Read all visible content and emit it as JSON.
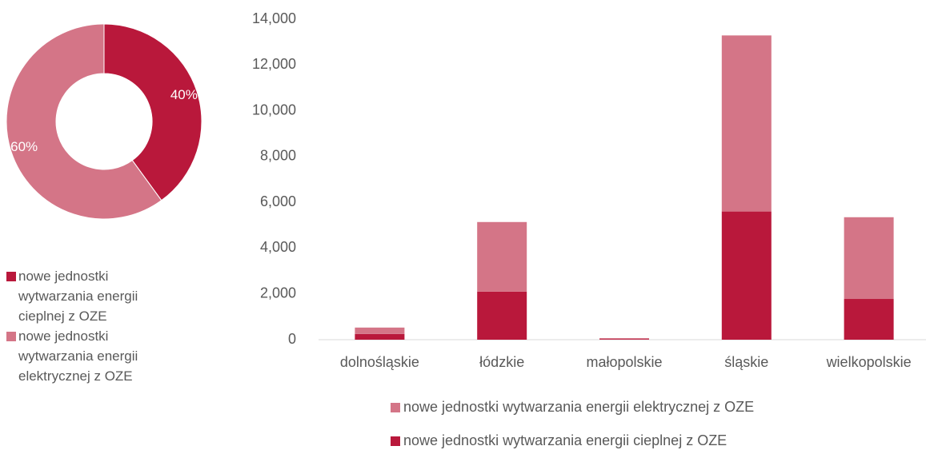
{
  "chart_data": [
    {
      "type": "donut",
      "categories": [
        "nowe jednostki wytwarzania energii cieplnej z OZE",
        "nowe jednostki wytwarzania energii elektrycznej z OZE"
      ],
      "values": [
        40,
        60
      ],
      "value_labels": [
        "40%",
        "60%"
      ],
      "colors": [
        "#b9183b",
        "#d47587"
      ]
    },
    {
      "type": "stacked_bar",
      "categories": [
        "dolnośląskie",
        "łódzkie",
        "małopolskie",
        "śląskie",
        "wielkopolskie"
      ],
      "series": [
        {
          "name": "nowe jednostki wytwarzania energii elektrycznej z OZE",
          "color": "#d47587",
          "values": [
            280,
            3040,
            40,
            7690,
            3570
          ]
        },
        {
          "name": "nowe jednostki wytwarzania energii cieplnej z OZE",
          "color": "#b9183b",
          "values": [
            250,
            2100,
            30,
            5600,
            1780
          ]
        }
      ],
      "ylim": [
        0,
        14000
      ],
      "yticks": [
        0,
        {
          "value": 2000,
          "label": "2,000"
        },
        {
          "value": 4000,
          "label": "4,000"
        },
        {
          "value": 6000,
          "label": "6,000"
        },
        {
          "value": 8000,
          "label": "8,000"
        },
        {
          "value": 10000,
          "label": "10,000"
        },
        {
          "value": 12000,
          "label": "12,000"
        },
        {
          "value": 14000,
          "label": "14,000"
        }
      ],
      "grid": false
    }
  ]
}
